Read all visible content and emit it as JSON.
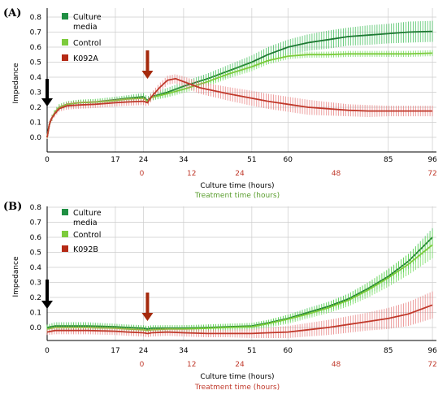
{
  "colors": {
    "culture_media": "#1e7a33",
    "control": "#7dcb3c",
    "k092": "#c0392b",
    "culture_media_err": "#2eb84a",
    "control_err": "#5fd64a",
    "k092_err": "#e57373",
    "arrow_black": "#000000",
    "arrow_red": "#a52a0d",
    "treatment_label": "#5a9e2e",
    "treatment_tick": "#c0392b",
    "grid": "#cccccc"
  },
  "chart_data": [
    {
      "type": "line",
      "panel": "(A)",
      "xlabel": "Culture time (hours)",
      "secondary_xlabel": "Treatment time (hours)",
      "ylabel": "Impedance",
      "xlim": [
        0,
        97
      ],
      "ylim": [
        -0.05,
        0.8
      ],
      "x_ticks": [
        "0",
        "17",
        "24",
        "34",
        "51",
        "60",
        "85",
        "96"
      ],
      "x_tick_values": [
        0,
        17,
        24,
        34,
        51,
        60,
        85,
        96
      ],
      "secondary_x_ticks": [
        "0",
        "12",
        "24",
        "48",
        "72"
      ],
      "secondary_x_tick_values": [
        24,
        36,
        48,
        72,
        96
      ],
      "y_ticks": [
        "0.0",
        "0.1",
        "0.2",
        "0.3",
        "0.4",
        "0.5",
        "0.6",
        "0.7",
        "0.8"
      ],
      "grid": true,
      "legend_position": "top-left",
      "arrows": [
        {
          "color": "black",
          "x": 0
        },
        {
          "color": "red",
          "x": 25
        }
      ],
      "series": [
        {
          "name": "Culture media",
          "x": [
            0,
            0.5,
            1,
            2,
            3,
            5,
            8,
            12,
            17,
            20,
            24,
            25,
            26,
            30,
            34,
            40,
            45,
            51,
            55,
            60,
            65,
            70,
            75,
            80,
            85,
            90,
            96
          ],
          "y": [
            0.0,
            0.08,
            0.12,
            0.17,
            0.2,
            0.22,
            0.23,
            0.235,
            0.25,
            0.26,
            0.27,
            0.245,
            0.27,
            0.3,
            0.34,
            0.39,
            0.44,
            0.5,
            0.55,
            0.6,
            0.63,
            0.65,
            0.67,
            0.68,
            0.69,
            0.7,
            0.705
          ],
          "err": [
            0.01,
            0.02,
            0.02,
            0.02,
            0.02,
            0.02,
            0.02,
            0.02,
            0.02,
            0.02,
            0.025,
            0.025,
            0.025,
            0.03,
            0.03,
            0.035,
            0.04,
            0.045,
            0.05,
            0.05,
            0.055,
            0.06,
            0.06,
            0.065,
            0.065,
            0.07,
            0.07
          ]
        },
        {
          "name": "Control",
          "x": [
            0,
            0.5,
            1,
            2,
            3,
            5,
            8,
            12,
            17,
            20,
            24,
            25,
            26,
            30,
            34,
            40,
            45,
            51,
            55,
            60,
            65,
            70,
            75,
            80,
            85,
            90,
            96
          ],
          "y": [
            0.0,
            0.08,
            0.12,
            0.17,
            0.2,
            0.22,
            0.23,
            0.235,
            0.245,
            0.255,
            0.26,
            0.24,
            0.265,
            0.29,
            0.32,
            0.37,
            0.42,
            0.47,
            0.51,
            0.54,
            0.55,
            0.55,
            0.555,
            0.555,
            0.555,
            0.555,
            0.56
          ],
          "err": [
            0.01,
            0.02,
            0.02,
            0.02,
            0.02,
            0.02,
            0.02,
            0.02,
            0.02,
            0.02,
            0.02,
            0.02,
            0.02,
            0.025,
            0.025,
            0.03,
            0.03,
            0.03,
            0.025,
            0.02,
            0.02,
            0.02,
            0.02,
            0.02,
            0.02,
            0.02,
            0.02
          ]
        },
        {
          "name": "K092A",
          "x": [
            0,
            0.5,
            1,
            2,
            3,
            5,
            8,
            12,
            17,
            20,
            24,
            25,
            26,
            28,
            30,
            32,
            34,
            38,
            45,
            51,
            55,
            60,
            65,
            70,
            75,
            80,
            85,
            90,
            96
          ],
          "y": [
            0.0,
            0.08,
            0.12,
            0.16,
            0.19,
            0.21,
            0.215,
            0.22,
            0.23,
            0.235,
            0.24,
            0.23,
            0.27,
            0.33,
            0.38,
            0.39,
            0.37,
            0.33,
            0.29,
            0.26,
            0.24,
            0.22,
            0.2,
            0.19,
            0.18,
            0.175,
            0.175,
            0.175,
            0.175
          ],
          "err": [
            0.01,
            0.02,
            0.02,
            0.02,
            0.02,
            0.025,
            0.025,
            0.025,
            0.025,
            0.025,
            0.025,
            0.025,
            0.03,
            0.03,
            0.03,
            0.03,
            0.035,
            0.04,
            0.045,
            0.05,
            0.05,
            0.05,
            0.05,
            0.045,
            0.04,
            0.04,
            0.035,
            0.035,
            0.035
          ]
        }
      ]
    },
    {
      "type": "line",
      "panel": "(B)",
      "xlabel": "Culture time (hours)",
      "secondary_xlabel": "Treatment time (hours)",
      "ylabel": "Impedance",
      "xlim": [
        0,
        97
      ],
      "ylim": [
        -0.08,
        0.8
      ],
      "x_ticks": [
        "0",
        "17",
        "24",
        "34",
        "51",
        "60",
        "85",
        "96"
      ],
      "x_tick_values": [
        0,
        17,
        24,
        34,
        51,
        60,
        85,
        96
      ],
      "secondary_x_ticks": [
        "0",
        "12",
        "24",
        "48",
        "72"
      ],
      "secondary_x_tick_values": [
        24,
        36,
        48,
        72,
        96
      ],
      "y_ticks": [
        "0.0",
        "0.1",
        "0.2",
        "0.3",
        "0.4",
        "0.5",
        "0.6",
        "0.7",
        "0.8"
      ],
      "grid": true,
      "legend_position": "top-left",
      "arrows": [
        {
          "color": "black",
          "x": 0
        },
        {
          "color": "red",
          "x": 25
        }
      ],
      "series": [
        {
          "name": "Culture media",
          "x": [
            0,
            2,
            5,
            10,
            17,
            20,
            24,
            25,
            26,
            30,
            34,
            40,
            45,
            51,
            55,
            60,
            65,
            70,
            75,
            80,
            85,
            90,
            96
          ],
          "y": [
            0.0,
            0.01,
            0.01,
            0.01,
            0.005,
            0.0,
            -0.005,
            -0.01,
            -0.005,
            -0.005,
            -0.005,
            0.0,
            0.005,
            0.01,
            0.03,
            0.06,
            0.1,
            0.14,
            0.19,
            0.26,
            0.34,
            0.44,
            0.6
          ],
          "err": [
            0.02,
            0.025,
            0.025,
            0.025,
            0.02,
            0.02,
            0.02,
            0.02,
            0.02,
            0.02,
            0.02,
            0.02,
            0.02,
            0.02,
            0.02,
            0.025,
            0.03,
            0.03,
            0.035,
            0.04,
            0.045,
            0.05,
            0.06
          ]
        },
        {
          "name": "Control",
          "x": [
            0,
            2,
            5,
            10,
            17,
            20,
            24,
            25,
            26,
            30,
            34,
            40,
            45,
            51,
            55,
            60,
            65,
            70,
            75,
            80,
            85,
            90,
            96
          ],
          "y": [
            -0.01,
            0.0,
            0.0,
            0.0,
            -0.005,
            -0.01,
            -0.015,
            -0.02,
            -0.015,
            -0.01,
            -0.01,
            -0.005,
            0.0,
            0.005,
            0.025,
            0.055,
            0.09,
            0.13,
            0.18,
            0.25,
            0.33,
            0.42,
            0.55
          ],
          "err": [
            0.025,
            0.025,
            0.025,
            0.025,
            0.025,
            0.025,
            0.025,
            0.025,
            0.025,
            0.025,
            0.025,
            0.025,
            0.025,
            0.025,
            0.025,
            0.03,
            0.03,
            0.035,
            0.04,
            0.05,
            0.06,
            0.07,
            0.09
          ]
        },
        {
          "name": "K092B",
          "x": [
            0,
            2,
            5,
            10,
            17,
            20,
            24,
            25,
            26,
            30,
            34,
            40,
            45,
            51,
            55,
            60,
            65,
            70,
            75,
            80,
            85,
            90,
            96
          ],
          "y": [
            -0.03,
            -0.02,
            -0.02,
            -0.02,
            -0.025,
            -0.03,
            -0.035,
            -0.04,
            -0.035,
            -0.03,
            -0.035,
            -0.04,
            -0.04,
            -0.04,
            -0.035,
            -0.03,
            -0.015,
            0.0,
            0.02,
            0.04,
            0.06,
            0.09,
            0.15
          ],
          "err": [
            0.02,
            0.025,
            0.025,
            0.025,
            0.025,
            0.025,
            0.025,
            0.025,
            0.025,
            0.025,
            0.025,
            0.025,
            0.025,
            0.03,
            0.035,
            0.04,
            0.045,
            0.05,
            0.055,
            0.06,
            0.07,
            0.08,
            0.09
          ]
        }
      ]
    }
  ]
}
